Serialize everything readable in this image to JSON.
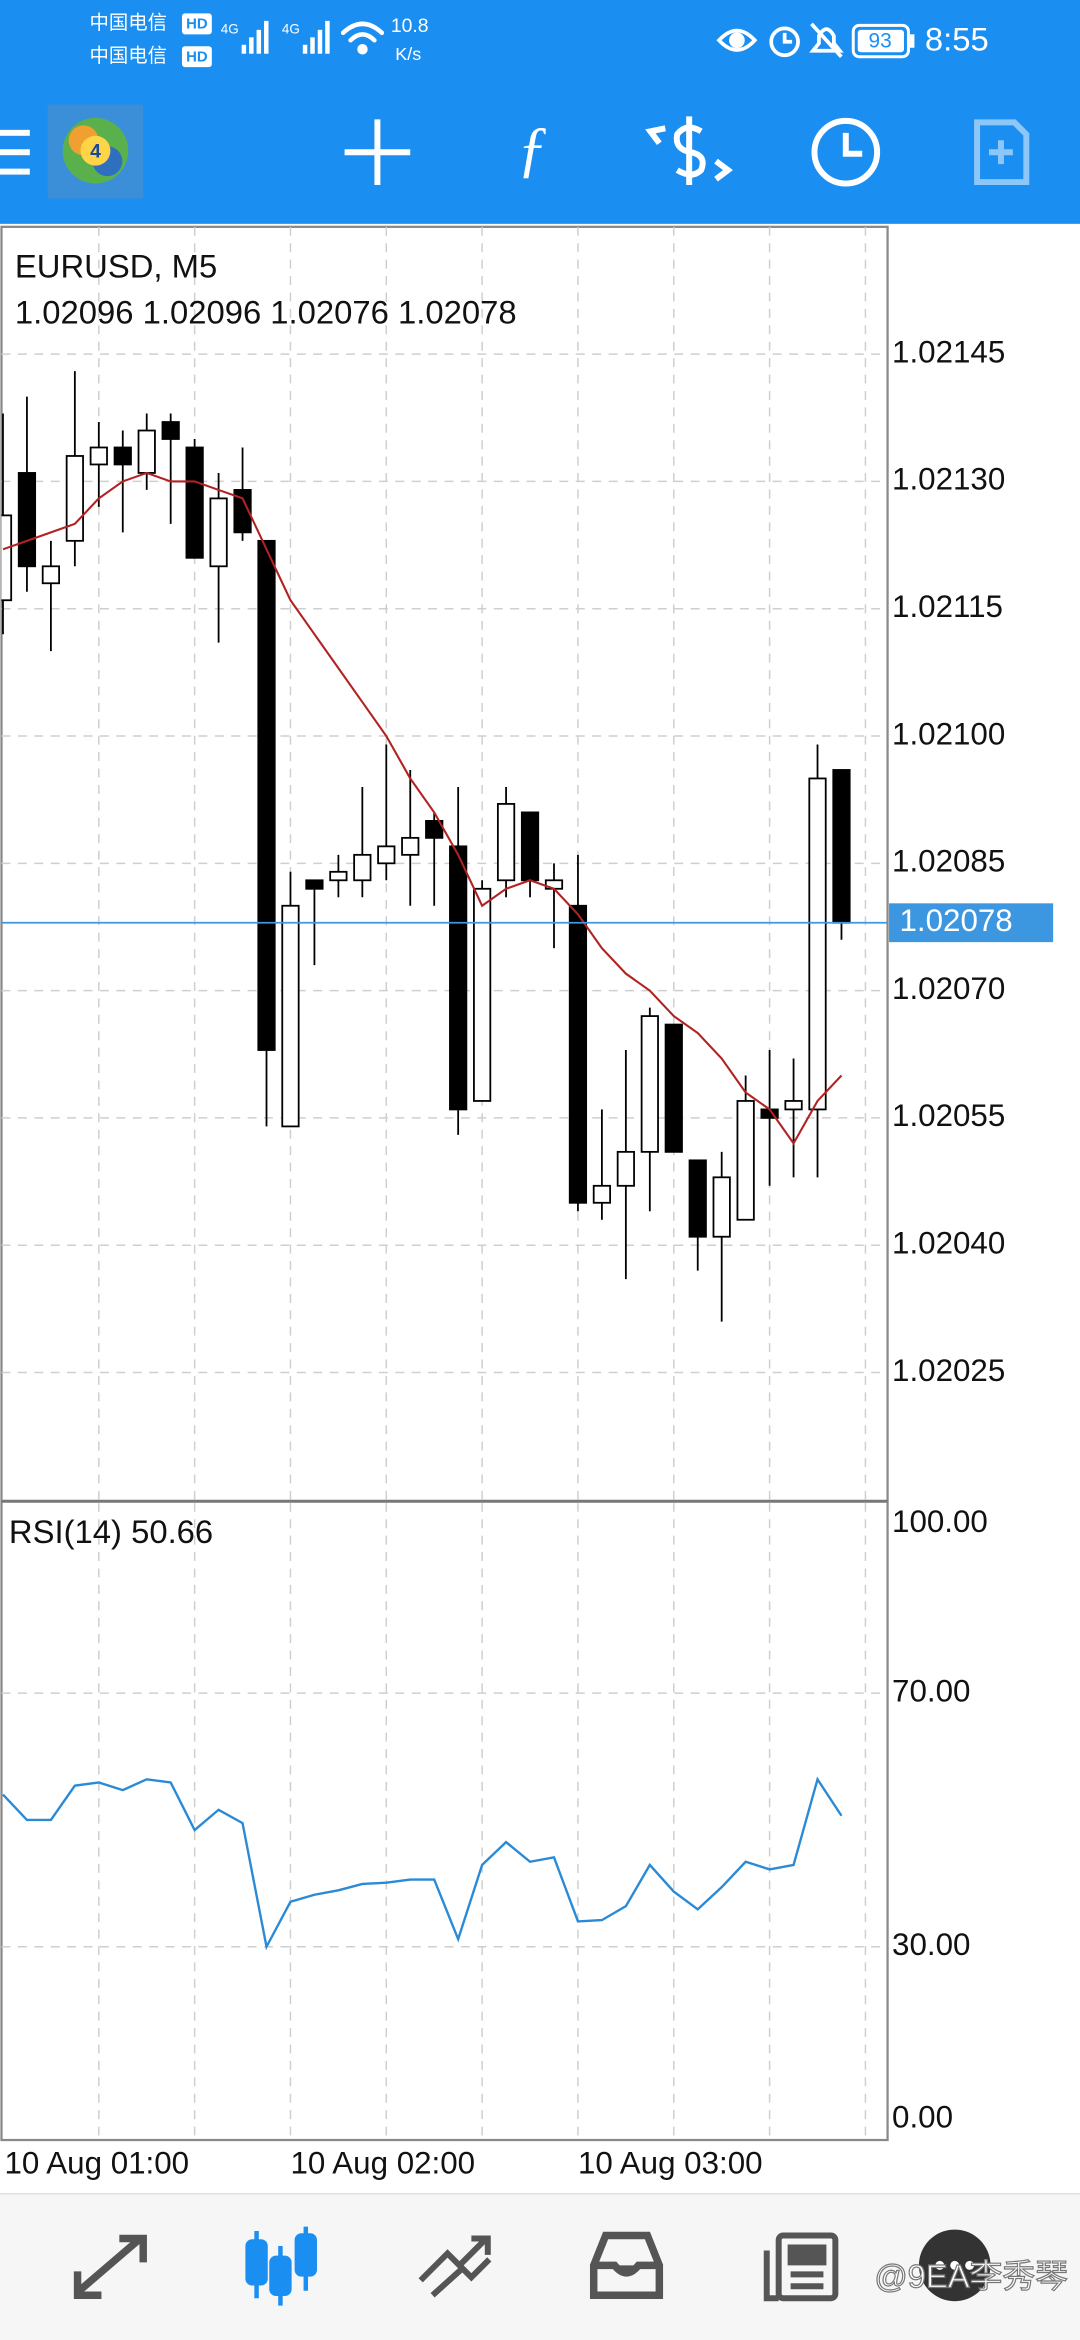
{
  "status_bar": {
    "carriers": [
      "中国电信",
      "中国电信"
    ],
    "hd": "HD",
    "network": "4G",
    "speed": "10.8",
    "speed_unit": "K/s",
    "battery": "93",
    "time": "8:55"
  },
  "chart_data": [
    {
      "type": "candlestick",
      "title": "EURUSD, M5",
      "subtitle": "1.02096 1.02096 1.02076 1.02078",
      "categories": [
        "10 Aug 01:00",
        null,
        null,
        null,
        null,
        null,
        null,
        null,
        null,
        null,
        null,
        null,
        "10 Aug 02:00",
        null,
        null,
        null,
        null,
        null,
        null,
        null,
        null,
        null,
        null,
        null,
        "10 Aug 03:00",
        null,
        null,
        null,
        null,
        null,
        null,
        null,
        null,
        null,
        null,
        null
      ],
      "open": [
        1.02116,
        1.02131,
        1.02118,
        1.02123,
        1.02132,
        1.02134,
        1.02131,
        1.02137,
        1.02134,
        1.0212,
        1.02129,
        1.02123,
        1.02054,
        1.02083,
        1.02083,
        1.02083,
        1.02085,
        1.02086,
        1.0209,
        1.02087,
        1.02057,
        1.02083,
        1.02091,
        1.02082,
        1.0208,
        1.02045,
        1.02047,
        1.02051,
        1.02066,
        1.0205,
        1.02041,
        1.02043,
        1.02056,
        1.02056,
        1.02056,
        1.02096
      ],
      "high": [
        1.02138,
        1.0214,
        1.02123,
        1.02143,
        1.02137,
        1.02136,
        1.02138,
        1.02138,
        1.02135,
        1.02131,
        1.02134,
        1.02123,
        1.02084,
        1.02083,
        1.02086,
        1.02094,
        1.02099,
        1.02096,
        1.02091,
        1.02094,
        1.02083,
        1.02094,
        1.02091,
        1.02085,
        1.02086,
        1.02056,
        1.02063,
        1.02068,
        1.02066,
        1.0205,
        1.02051,
        1.0206,
        1.02063,
        1.02062,
        1.02099,
        1.02096
      ],
      "low": [
        1.02112,
        1.02117,
        1.0211,
        1.0212,
        1.02127,
        1.02124,
        1.02129,
        1.02125,
        1.02121,
        1.02111,
        1.02123,
        1.02054,
        1.02054,
        1.02073,
        1.02081,
        1.02081,
        1.02083,
        1.0208,
        1.0208,
        1.02053,
        1.02057,
        1.02081,
        1.02081,
        1.02075,
        1.02044,
        1.02043,
        1.02036,
        1.02044,
        1.02051,
        1.02037,
        1.02031,
        1.02043,
        1.02047,
        1.02048,
        1.02048,
        1.02076
      ],
      "close": [
        1.02126,
        1.0212,
        1.0212,
        1.02133,
        1.02134,
        1.02132,
        1.02136,
        1.02135,
        1.02121,
        1.02128,
        1.02124,
        1.02063,
        1.0208,
        1.02082,
        1.02084,
        1.02086,
        1.02087,
        1.02088,
        1.02088,
        1.02056,
        1.02082,
        1.02092,
        1.02083,
        1.02083,
        1.02045,
        1.02047,
        1.02051,
        1.02067,
        1.02051,
        1.02041,
        1.02048,
        1.02057,
        1.02055,
        1.02057,
        1.02095,
        1.02078
      ],
      "bull_color": "#ffffff",
      "bear_color": "#000000",
      "overlay": {
        "color": "#b22222",
        "values": [
          1.02122,
          1.02123,
          1.02124,
          1.02125,
          1.02128,
          1.0213,
          1.02131,
          1.0213,
          1.0213,
          1.02129,
          1.02128,
          1.02122,
          1.02116,
          1.02112,
          1.02108,
          1.02104,
          1.021,
          1.02095,
          1.02091,
          1.02086,
          1.0208,
          1.02082,
          1.02083,
          1.02082,
          1.02079,
          1.02075,
          1.02072,
          1.0207,
          1.02067,
          1.02065,
          1.02062,
          1.02058,
          1.02056,
          1.02052,
          1.02057,
          1.0206
        ]
      },
      "current_price": {
        "value": 1.02078,
        "label": "1.02078",
        "color": "#3d96e0"
      },
      "ylim": [
        1.0201,
        1.0216
      ],
      "yticks": [
        1.02145,
        {
          "value": 1.0213,
          "label": "1.02130"
        },
        1.02115,
        {
          "value": 1.021,
          "label": "1.02100"
        },
        1.02085,
        {
          "value": 1.0207,
          "label": "1.02070"
        },
        1.02055,
        {
          "value": 1.0204,
          "label": "1.02040"
        },
        1.02025
      ],
      "grid": true
    },
    {
      "type": "line",
      "title": "RSI(14) 50.66",
      "color": "#2b8ad6",
      "values": [
        54,
        50,
        50,
        55.4,
        55.9,
        54.7,
        56.4,
        55.9,
        48.4,
        51.6,
        49.5,
        30,
        37.1,
        38.2,
        38.9,
        39.9,
        40.1,
        40.6,
        40.6,
        31.2,
        42.9,
        46.5,
        43.4,
        44.1,
        34,
        34.2,
        36.4,
        42.9,
        38.7,
        35.9,
        39.4,
        43.4,
        42.2,
        42.9,
        56.4,
        50.66
      ],
      "ylim": [
        0,
        100
      ],
      "yticks": [
        {
          "value": 100,
          "label": "100.00"
        },
        {
          "value": 70,
          "label": "70.00"
        },
        {
          "value": 30,
          "label": "30.00"
        },
        {
          "value": 0,
          "label": "0.00"
        }
      ],
      "grid": true
    }
  ],
  "watermark": "@9EA李秀琴"
}
